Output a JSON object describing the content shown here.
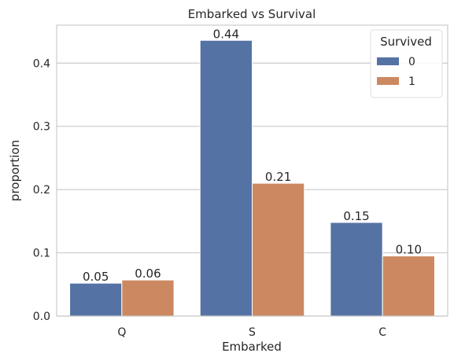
{
  "chart_data": {
    "type": "bar",
    "title": "Embarked vs Survival",
    "xlabel": "Embarked",
    "ylabel": "proportion",
    "categories": [
      "Q",
      "S",
      "C"
    ],
    "series": [
      {
        "name": "0",
        "values": [
          0.052,
          0.436,
          0.148
        ],
        "labels": [
          "0.05",
          "0.44",
          "0.15"
        ],
        "color": "#5572a4"
      },
      {
        "name": "1",
        "values": [
          0.057,
          0.21,
          0.095
        ],
        "labels": [
          "0.06",
          "0.21",
          "0.10"
        ],
        "color": "#cc8961"
      }
    ],
    "ylim": [
      0,
      0.46
    ],
    "yticks": [
      0.0,
      0.1,
      0.2,
      0.3,
      0.4
    ],
    "ytick_labels": [
      "0.0",
      "0.1",
      "0.2",
      "0.3",
      "0.4"
    ],
    "grid": "y",
    "legend": {
      "title": "Survived",
      "position": "top-right"
    }
  }
}
